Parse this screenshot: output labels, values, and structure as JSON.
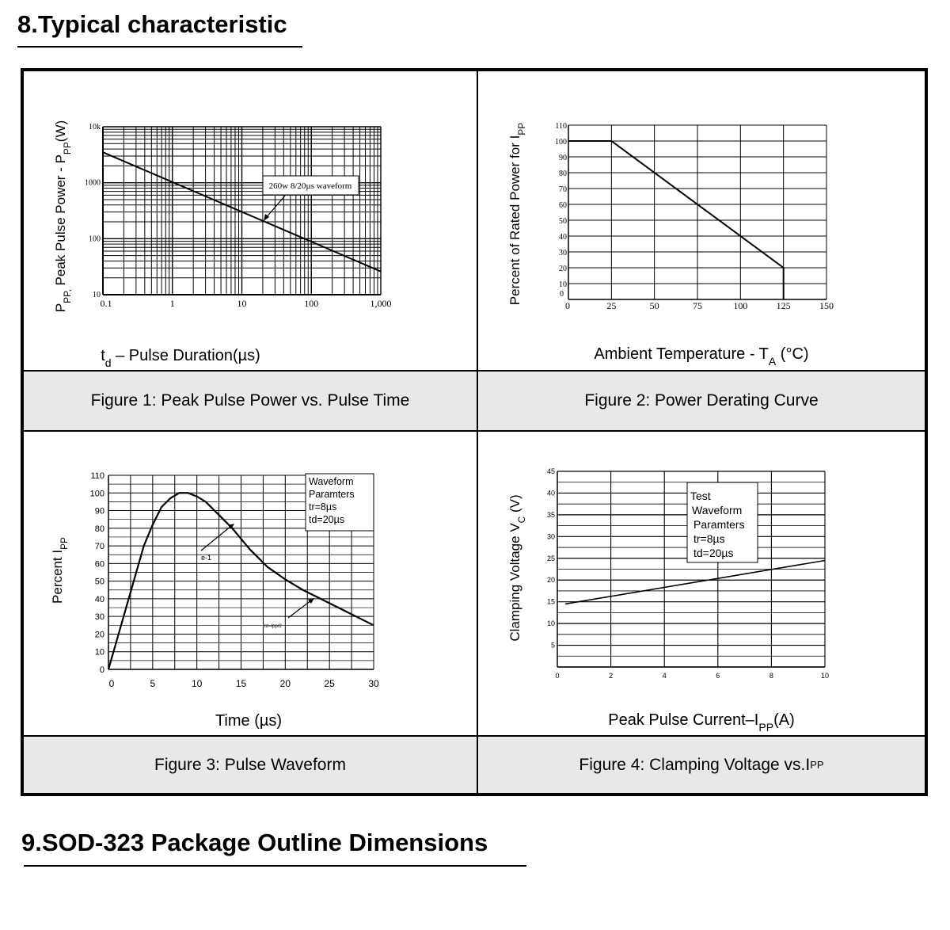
{
  "section8": {
    "title": "8.Typical characteristic"
  },
  "section9": {
    "title": "9.SOD-323 Package Outline Dimensions"
  },
  "chart_data": [
    {
      "type": "line",
      "caption": "Figure 1: Peak Pulse Power vs. Pulse Time",
      "xlabel": "t",
      "xlabel_sub": "d",
      "xlabel_rest": " – Pulse Duration(µs)",
      "ylabel": "P",
      "ylabel_sub": "PP,",
      "ylabel_mid": " Peak Pulse Power - P",
      "ylabel_sub2": "PP",
      "ylabel_rest": "(W)",
      "x_scale": "log",
      "y_scale": "log",
      "xlim": [
        0.1,
        1000
      ],
      "ylim": [
        10,
        10000
      ],
      "x_ticks": [
        "0.1",
        "1",
        "10",
        "100",
        "1,000"
      ],
      "y_ticks": [
        "10",
        "100",
        "1000",
        "10k"
      ],
      "grid": true,
      "annotation": "260w 8/20µs waveform",
      "series": [
        {
          "x": [
            0.1,
            1000
          ],
          "y": [
            3500,
            26
          ]
        }
      ]
    },
    {
      "type": "line",
      "caption": "Figure 2: Power Derating Curve",
      "xlabel": "Ambient Temperature - T",
      "xlabel_sub": "A",
      "xlabel_rest": " (°C)",
      "ylabel": "Percent of Rated Power for I",
      "ylabel_sub": "PP",
      "xlim": [
        0,
        150
      ],
      "ylim": [
        0,
        110
      ],
      "x_ticks": [
        "0",
        "25",
        "50",
        "75",
        "100",
        "125",
        "150"
      ],
      "y_ticks": [
        "0",
        "10",
        "20",
        "30",
        "40",
        "50",
        "60",
        "70",
        "80",
        "90",
        "100",
        "110"
      ],
      "grid": true,
      "series": [
        {
          "x": [
            0,
            25,
            125,
            125
          ],
          "y": [
            100,
            100,
            20,
            0
          ]
        }
      ]
    },
    {
      "type": "line",
      "caption": "Figure 3: Pulse Waveform",
      "xlabel": "Time (µs)",
      "ylabel": "Percent I",
      "ylabel_sub": "PP",
      "xlim": [
        0,
        30
      ],
      "ylim": [
        0,
        110
      ],
      "x_ticks": [
        "0",
        "5",
        "10",
        "15",
        "20",
        "25",
        "30"
      ],
      "y_ticks": [
        "0",
        "10",
        "20",
        "30",
        "40",
        "50",
        "60",
        "70",
        "80",
        "90",
        "100",
        "110"
      ],
      "grid": true,
      "legend_lines": [
        "Waveform",
        "Paramters",
        "tr=8µs",
        "td=20µs"
      ],
      "annot_e": "e",
      "annot_e_sup": "-1",
      "annot_td": "td=Ipp/2",
      "series": [
        {
          "x": [
            0,
            2,
            4,
            5,
            6,
            7,
            8,
            9,
            10,
            11,
            12,
            13,
            14,
            16,
            18,
            20,
            22,
            24,
            26,
            28,
            30
          ],
          "y": [
            0,
            35,
            70,
            82,
            92,
            97,
            100,
            100,
            98,
            95,
            90,
            85,
            80,
            68,
            58,
            51,
            45,
            40,
            35,
            30,
            25
          ]
        }
      ]
    },
    {
      "type": "line",
      "caption": "Figure 4: Clamping Voltage vs.I",
      "caption_sub": "PP",
      "xlabel": "Peak Pulse Current–I",
      "xlabel_sub": "PP",
      "xlabel_rest": "(A)",
      "ylabel": "Clamping Voltage V",
      "ylabel_sub": "C",
      "ylabel_rest": " (V)",
      "xlim": [
        0,
        10
      ],
      "ylim": [
        0,
        45
      ],
      "x_ticks": [
        "0",
        "2",
        "4",
        "6",
        "8",
        "10"
      ],
      "y_ticks": [
        "5",
        "10",
        "15",
        "20",
        "25",
        "30",
        "35",
        "40",
        "45"
      ],
      "grid": true,
      "legend_lines": [
        "Test",
        "Waveform",
        "Paramters",
        "tr=8µs",
        "td=20µs"
      ],
      "series": [
        {
          "x": [
            0.3,
            10
          ],
          "y": [
            14.5,
            24.5
          ]
        }
      ]
    }
  ]
}
